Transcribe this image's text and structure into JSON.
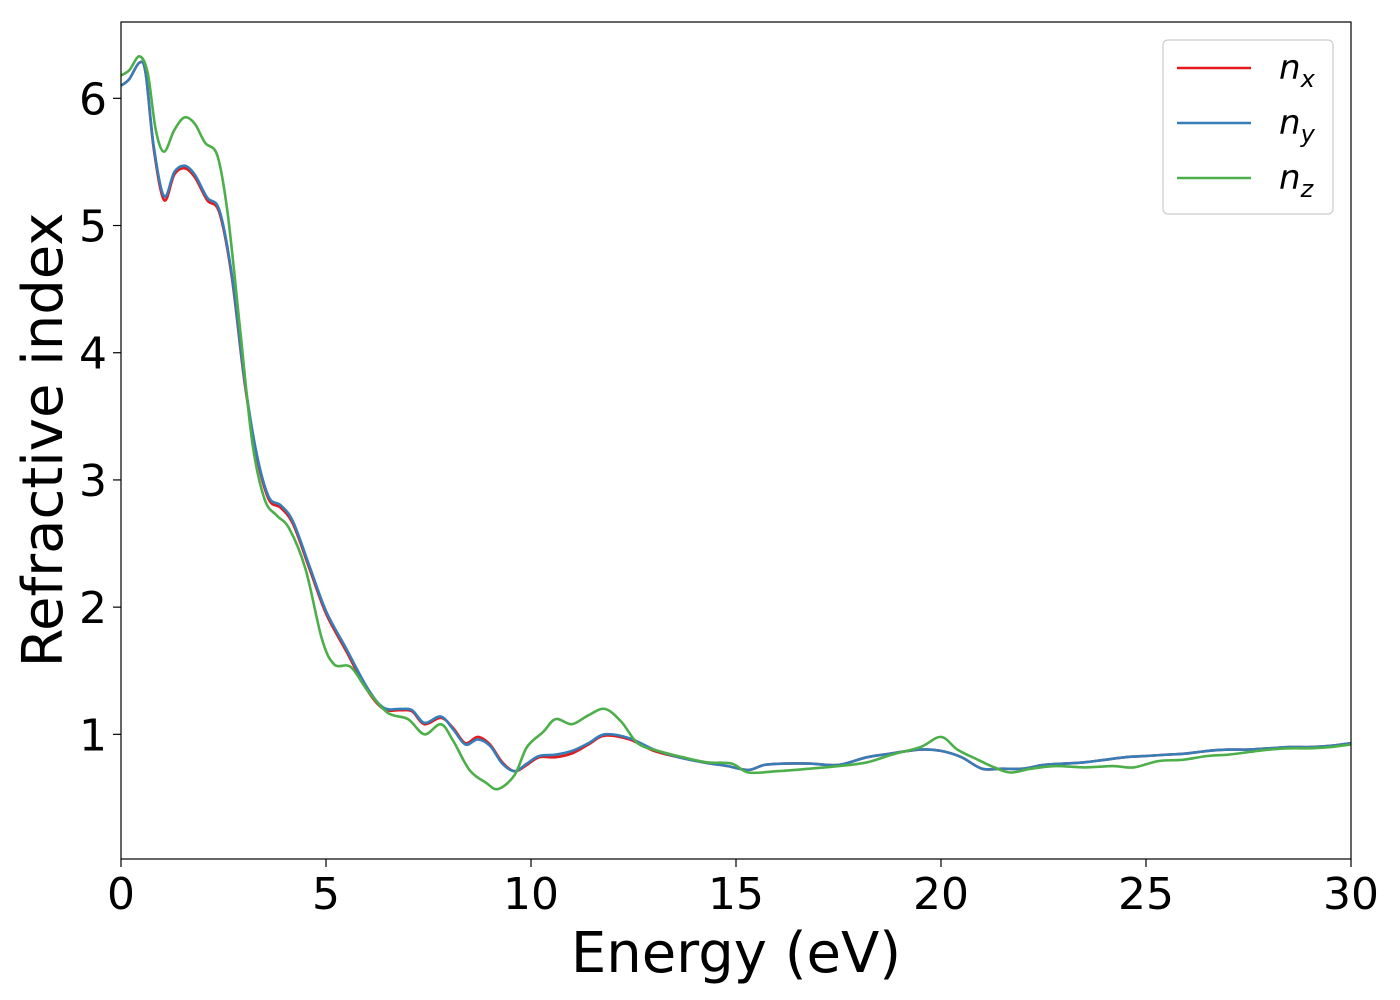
{
  "chart_data": {
    "type": "line",
    "xlabel": "Energy (eV)",
    "ylabel": "Refractive index",
    "xlim": [
      0,
      30
    ],
    "ylim": [
      0.02,
      6.6
    ],
    "xticks": [
      0,
      5,
      10,
      15,
      20,
      25,
      30
    ],
    "yticks": [
      1,
      2,
      3,
      4,
      5,
      6
    ],
    "grid": false,
    "legend_position": "top-right",
    "series": [
      {
        "name": "n",
        "subscript": "x",
        "color": "#e41a1c",
        "points": [
          [
            0,
            6.1
          ],
          [
            0.2,
            6.15
          ],
          [
            0.45,
            6.28
          ],
          [
            0.6,
            6.2
          ],
          [
            0.8,
            5.6
          ],
          [
            1.05,
            5.2
          ],
          [
            1.3,
            5.4
          ],
          [
            1.55,
            5.45
          ],
          [
            1.8,
            5.38
          ],
          [
            2.1,
            5.2
          ],
          [
            2.4,
            5.1
          ],
          [
            2.7,
            4.6
          ],
          [
            3.0,
            3.8
          ],
          [
            3.3,
            3.2
          ],
          [
            3.6,
            2.85
          ],
          [
            3.9,
            2.78
          ],
          [
            4.2,
            2.65
          ],
          [
            4.6,
            2.3
          ],
          [
            5.0,
            1.95
          ],
          [
            5.5,
            1.65
          ],
          [
            6.0,
            1.35
          ],
          [
            6.4,
            1.2
          ],
          [
            6.8,
            1.19
          ],
          [
            7.1,
            1.18
          ],
          [
            7.4,
            1.08
          ],
          [
            7.8,
            1.13
          ],
          [
            8.1,
            1.05
          ],
          [
            8.4,
            0.93
          ],
          [
            8.7,
            0.98
          ],
          [
            9.0,
            0.92
          ],
          [
            9.3,
            0.78
          ],
          [
            9.6,
            0.71
          ],
          [
            9.9,
            0.76
          ],
          [
            10.2,
            0.82
          ],
          [
            10.6,
            0.82
          ],
          [
            11.0,
            0.85
          ],
          [
            11.4,
            0.92
          ],
          [
            11.8,
            0.99
          ],
          [
            12.4,
            0.96
          ],
          [
            13.0,
            0.87
          ],
          [
            13.6,
            0.82
          ],
          [
            14.2,
            0.78
          ],
          [
            14.8,
            0.75
          ],
          [
            15.3,
            0.72
          ],
          [
            15.7,
            0.76
          ],
          [
            16.2,
            0.77
          ],
          [
            16.8,
            0.77
          ],
          [
            17.5,
            0.76
          ],
          [
            18.2,
            0.82
          ],
          [
            18.8,
            0.85
          ],
          [
            19.5,
            0.88
          ],
          [
            20.0,
            0.87
          ],
          [
            20.5,
            0.82
          ],
          [
            21.0,
            0.73
          ],
          [
            21.5,
            0.73
          ],
          [
            22.0,
            0.73
          ],
          [
            22.5,
            0.76
          ],
          [
            23.0,
            0.77
          ],
          [
            23.5,
            0.78
          ],
          [
            24.0,
            0.8
          ],
          [
            24.5,
            0.82
          ],
          [
            25.0,
            0.83
          ],
          [
            25.5,
            0.84
          ],
          [
            26.0,
            0.85
          ],
          [
            26.5,
            0.87
          ],
          [
            27.0,
            0.88
          ],
          [
            27.5,
            0.88
          ],
          [
            28.0,
            0.89
          ],
          [
            28.5,
            0.9
          ],
          [
            29.0,
            0.9
          ],
          [
            29.5,
            0.91
          ],
          [
            30.0,
            0.93
          ]
        ]
      },
      {
        "name": "n",
        "subscript": "y",
        "color": "#377eb8",
        "points": [
          [
            0,
            6.1
          ],
          [
            0.2,
            6.15
          ],
          [
            0.45,
            6.28
          ],
          [
            0.6,
            6.2
          ],
          [
            0.8,
            5.62
          ],
          [
            1.05,
            5.23
          ],
          [
            1.3,
            5.42
          ],
          [
            1.55,
            5.47
          ],
          [
            1.8,
            5.4
          ],
          [
            2.1,
            5.22
          ],
          [
            2.4,
            5.12
          ],
          [
            2.7,
            4.62
          ],
          [
            3.0,
            3.82
          ],
          [
            3.3,
            3.22
          ],
          [
            3.6,
            2.87
          ],
          [
            3.9,
            2.8
          ],
          [
            4.2,
            2.67
          ],
          [
            4.6,
            2.32
          ],
          [
            5.0,
            1.97
          ],
          [
            5.5,
            1.67
          ],
          [
            6.0,
            1.37
          ],
          [
            6.4,
            1.21
          ],
          [
            6.8,
            1.2
          ],
          [
            7.1,
            1.19
          ],
          [
            7.4,
            1.09
          ],
          [
            7.8,
            1.14
          ],
          [
            8.1,
            1.04
          ],
          [
            8.4,
            0.92
          ],
          [
            8.7,
            0.96
          ],
          [
            9.0,
            0.91
          ],
          [
            9.3,
            0.77
          ],
          [
            9.6,
            0.71
          ],
          [
            9.9,
            0.77
          ],
          [
            10.2,
            0.83
          ],
          [
            10.6,
            0.84
          ],
          [
            11.0,
            0.87
          ],
          [
            11.4,
            0.93
          ],
          [
            11.8,
            1.0
          ],
          [
            12.4,
            0.97
          ],
          [
            13.0,
            0.88
          ],
          [
            13.6,
            0.82
          ],
          [
            14.2,
            0.78
          ],
          [
            14.8,
            0.75
          ],
          [
            15.3,
            0.72
          ],
          [
            15.7,
            0.76
          ],
          [
            16.2,
            0.77
          ],
          [
            16.8,
            0.77
          ],
          [
            17.5,
            0.76
          ],
          [
            18.2,
            0.82
          ],
          [
            18.8,
            0.85
          ],
          [
            19.5,
            0.88
          ],
          [
            20.0,
            0.87
          ],
          [
            20.5,
            0.82
          ],
          [
            21.0,
            0.73
          ],
          [
            21.5,
            0.73
          ],
          [
            22.0,
            0.73
          ],
          [
            22.5,
            0.76
          ],
          [
            23.0,
            0.77
          ],
          [
            23.5,
            0.78
          ],
          [
            24.0,
            0.8
          ],
          [
            24.5,
            0.82
          ],
          [
            25.0,
            0.83
          ],
          [
            25.5,
            0.84
          ],
          [
            26.0,
            0.85
          ],
          [
            26.5,
            0.87
          ],
          [
            27.0,
            0.88
          ],
          [
            27.5,
            0.88
          ],
          [
            28.0,
            0.89
          ],
          [
            28.5,
            0.9
          ],
          [
            29.0,
            0.9
          ],
          [
            29.5,
            0.91
          ],
          [
            30.0,
            0.93
          ]
        ]
      },
      {
        "name": "n",
        "subscript": "z",
        "color": "#4daf4a",
        "points": [
          [
            0,
            6.18
          ],
          [
            0.2,
            6.22
          ],
          [
            0.45,
            6.33
          ],
          [
            0.65,
            6.2
          ],
          [
            0.85,
            5.75
          ],
          [
            1.05,
            5.58
          ],
          [
            1.3,
            5.75
          ],
          [
            1.55,
            5.85
          ],
          [
            1.8,
            5.8
          ],
          [
            2.05,
            5.65
          ],
          [
            2.35,
            5.55
          ],
          [
            2.6,
            5.1
          ],
          [
            2.9,
            4.2
          ],
          [
            3.2,
            3.3
          ],
          [
            3.5,
            2.85
          ],
          [
            3.8,
            2.72
          ],
          [
            4.1,
            2.62
          ],
          [
            4.5,
            2.3
          ],
          [
            4.9,
            1.75
          ],
          [
            5.2,
            1.55
          ],
          [
            5.6,
            1.53
          ],
          [
            6.0,
            1.35
          ],
          [
            6.5,
            1.17
          ],
          [
            7.0,
            1.12
          ],
          [
            7.4,
            1.0
          ],
          [
            7.8,
            1.08
          ],
          [
            8.1,
            0.95
          ],
          [
            8.5,
            0.72
          ],
          [
            8.9,
            0.62
          ],
          [
            9.2,
            0.57
          ],
          [
            9.6,
            0.68
          ],
          [
            9.9,
            0.9
          ],
          [
            10.3,
            1.02
          ],
          [
            10.6,
            1.12
          ],
          [
            11.0,
            1.08
          ],
          [
            11.4,
            1.15
          ],
          [
            11.8,
            1.2
          ],
          [
            12.2,
            1.1
          ],
          [
            12.6,
            0.93
          ],
          [
            13.1,
            0.87
          ],
          [
            13.7,
            0.82
          ],
          [
            14.3,
            0.78
          ],
          [
            14.9,
            0.77
          ],
          [
            15.3,
            0.7
          ],
          [
            16.0,
            0.71
          ],
          [
            16.8,
            0.73
          ],
          [
            17.5,
            0.75
          ],
          [
            18.2,
            0.78
          ],
          [
            18.8,
            0.84
          ],
          [
            19.5,
            0.9
          ],
          [
            20.0,
            0.98
          ],
          [
            20.4,
            0.88
          ],
          [
            20.9,
            0.8
          ],
          [
            21.3,
            0.74
          ],
          [
            21.7,
            0.7
          ],
          [
            22.2,
            0.73
          ],
          [
            22.8,
            0.75
          ],
          [
            23.5,
            0.74
          ],
          [
            24.2,
            0.75
          ],
          [
            24.7,
            0.74
          ],
          [
            25.3,
            0.79
          ],
          [
            25.9,
            0.8
          ],
          [
            26.5,
            0.83
          ],
          [
            27.0,
            0.84
          ],
          [
            27.5,
            0.86
          ],
          [
            28.0,
            0.88
          ],
          [
            28.5,
            0.89
          ],
          [
            29.0,
            0.89
          ],
          [
            29.5,
            0.9
          ],
          [
            30.0,
            0.92
          ]
        ]
      }
    ]
  }
}
